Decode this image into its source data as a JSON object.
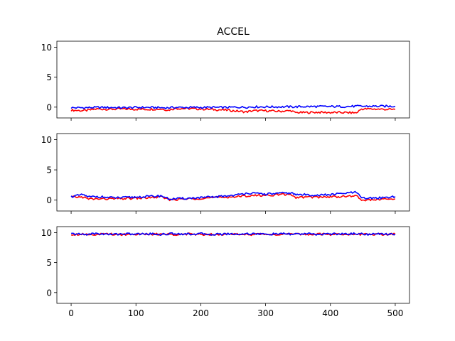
{
  "figure": {
    "title": "ACCEL"
  },
  "chart_data": [
    {
      "type": "line",
      "xlim": [
        -22,
        522
      ],
      "ylim": [
        -1.8,
        11.0
      ],
      "yticks": [
        0,
        5,
        10
      ],
      "xticks": [
        0,
        100,
        200,
        300,
        400,
        500
      ],
      "show_x_tick_labels": false,
      "grid": false,
      "x": [
        0,
        20,
        40,
        60,
        80,
        100,
        120,
        140,
        150,
        160,
        180,
        200,
        220,
        240,
        260,
        270,
        280,
        300,
        320,
        340,
        345,
        360,
        380,
        400,
        420,
        440,
        448,
        460,
        480,
        500
      ],
      "series": [
        {
          "color": "#ff0000",
          "values": [
            -0.5,
            -0.6,
            -0.3,
            -0.35,
            -0.3,
            -0.35,
            -0.35,
            -0.3,
            -0.5,
            -0.2,
            -0.25,
            -0.3,
            -0.4,
            -0.5,
            -0.7,
            -0.8,
            -0.6,
            -0.6,
            -0.7,
            -0.6,
            -0.9,
            -0.9,
            -0.85,
            -0.9,
            -0.9,
            -0.95,
            -0.3,
            -0.3,
            -0.35,
            -0.4
          ]
        },
        {
          "color": "#0000ff",
          "values": [
            -0.1,
            -0.1,
            -0.05,
            -0.05,
            -0.1,
            -0.05,
            -0.05,
            -0.1,
            -0.1,
            -0.05,
            -0.05,
            -0.05,
            -0.05,
            -0.05,
            0.0,
            0.0,
            0.05,
            0.05,
            0.05,
            0.05,
            0.05,
            0.1,
            0.1,
            0.1,
            0.1,
            0.15,
            0.15,
            0.15,
            0.15,
            0.15
          ]
        }
      ]
    },
    {
      "type": "line",
      "xlim": [
        -22,
        522
      ],
      "ylim": [
        -1.8,
        11.0
      ],
      "yticks": [
        0,
        5,
        10
      ],
      "xticks": [
        0,
        100,
        200,
        300,
        400,
        500
      ],
      "show_x_tick_labels": false,
      "grid": false,
      "x": [
        0,
        20,
        25,
        40,
        60,
        80,
        100,
        120,
        140,
        150,
        160,
        180,
        200,
        220,
        240,
        260,
        270,
        280,
        300,
        320,
        340,
        345,
        360,
        380,
        400,
        420,
        440,
        448,
        460,
        480,
        500
      ],
      "series": [
        {
          "color": "#ff0000",
          "values": [
            0.5,
            0.5,
            0.2,
            0.2,
            0.2,
            0.25,
            0.3,
            0.4,
            0.5,
            0.1,
            0.1,
            0.2,
            0.3,
            0.4,
            0.5,
            0.6,
            0.7,
            0.75,
            0.8,
            0.9,
            0.95,
            0.4,
            0.5,
            0.5,
            0.55,
            0.6,
            0.7,
            0.0,
            0.05,
            0.1,
            0.2
          ]
        },
        {
          "color": "#0000ff",
          "values": [
            0.6,
            0.9,
            0.5,
            0.6,
            0.4,
            0.4,
            0.5,
            0.6,
            0.7,
            0.2,
            0.2,
            0.3,
            0.4,
            0.5,
            0.7,
            0.9,
            1.2,
            1.1,
            1.0,
            1.1,
            1.2,
            0.9,
            0.9,
            0.8,
            0.9,
            1.1,
            1.3,
            0.3,
            0.3,
            0.4,
            0.6
          ]
        }
      ]
    },
    {
      "type": "line",
      "xlim": [
        -22,
        522
      ],
      "ylim": [
        -1.8,
        11.0
      ],
      "yticks": [
        0,
        5,
        10
      ],
      "xticks": [
        0,
        100,
        200,
        300,
        400,
        500
      ],
      "show_x_tick_labels": true,
      "grid": false,
      "x": [
        0,
        20,
        40,
        60,
        80,
        100,
        120,
        140,
        160,
        180,
        200,
        220,
        240,
        260,
        280,
        300,
        320,
        340,
        360,
        380,
        400,
        420,
        440,
        460,
        480,
        500
      ],
      "series": [
        {
          "color": "#ff0000",
          "values": [
            9.7,
            9.75,
            9.7,
            9.75,
            9.7,
            9.75,
            9.7,
            9.75,
            9.7,
            9.75,
            9.7,
            9.75,
            9.7,
            9.75,
            9.7,
            9.75,
            9.7,
            9.75,
            9.7,
            9.75,
            9.7,
            9.75,
            9.7,
            9.75,
            9.7,
            9.75
          ]
        },
        {
          "color": "#0000ff",
          "values": [
            9.8,
            9.7,
            9.85,
            9.7,
            9.8,
            9.75,
            9.8,
            9.7,
            9.85,
            9.75,
            9.8,
            9.7,
            9.8,
            9.75,
            9.85,
            9.7,
            9.8,
            9.75,
            9.8,
            9.7,
            9.8,
            9.75,
            9.85,
            9.7,
            9.8,
            9.75
          ]
        }
      ]
    }
  ]
}
